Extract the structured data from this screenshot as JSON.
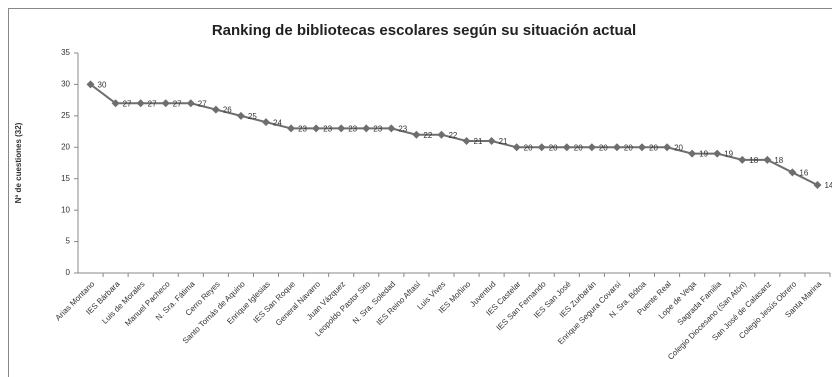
{
  "chart_data": {
    "type": "line",
    "title": "Ranking de bibliotecas escolares según su situación actual",
    "y_label": "Nº de cuestiones (32)",
    "categories": [
      "Arias Montano",
      "IES Bárbara",
      "Luis de Morales",
      "Manuel Pacheco",
      "N. Sra. Fátima",
      "Cerro Reyes",
      "Santo Tomás de Aquino",
      "Enrique Iglesias",
      "IES San Roque",
      "General Navarro",
      "Juan Vázquez",
      "Leopoldo Pastor Sito",
      "N. Sra. Soledad",
      "IES Reino Aftasí",
      "Luis Vives",
      "IES Moñino",
      "Juventud",
      "IES Castelar",
      "IES San Fernando",
      "IES San José",
      "IES Zurbarán",
      "Enrique Segura Covarsí",
      "N. Sra. Bótoa",
      "Puente Real",
      "Lope de Vega",
      "Sagrada Familia",
      "Colegio Diocesano (San Atón)",
      "San José de Calasanz",
      "Colegio Jesús Obrero",
      "Santa Marina"
    ],
    "values": [
      30,
      27,
      27,
      27,
      27,
      26,
      25,
      24,
      23,
      23,
      23,
      23,
      23,
      22,
      22,
      21,
      21,
      20,
      20,
      20,
      20,
      20,
      20,
      20,
      19,
      19,
      18,
      18,
      16,
      14
    ],
    "color": "#6e6e6e",
    "ylim": [
      0,
      35
    ],
    "yticks": [
      0,
      5,
      10,
      15,
      20,
      25,
      30,
      35
    ],
    "grid": false
  }
}
